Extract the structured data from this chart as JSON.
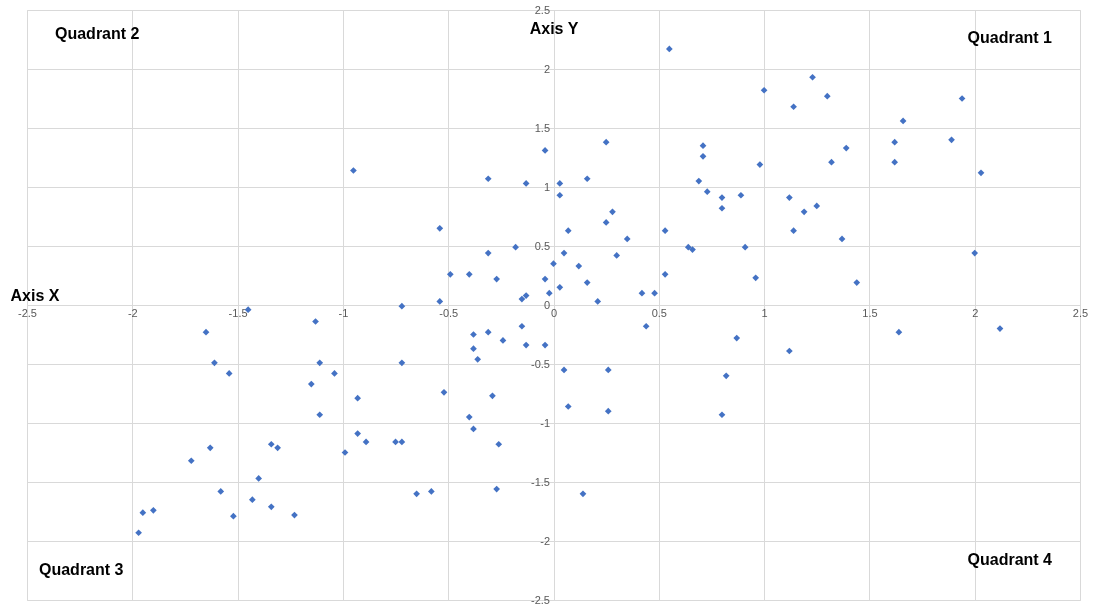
{
  "chart_data": {
    "type": "scatter",
    "xlabel": "Axis X",
    "ylabel": "Axis Y",
    "annotations": [
      "Quadrant 2",
      "Quadrant 1",
      "Quadrant 3",
      "Quadrant 4"
    ],
    "xlim": [
      -2.5,
      2.5
    ],
    "ylim": [
      -2.5,
      2.5
    ],
    "xticks": [
      -2.5,
      -2,
      -1.5,
      -1,
      -0.5,
      0,
      0.5,
      1,
      1.5,
      2,
      2.5
    ],
    "yticks": [
      -2.5,
      -2,
      -1.5,
      -1,
      -0.5,
      0,
      0.5,
      1,
      1.5,
      2,
      2.5
    ],
    "grid": true,
    "marker": "diamond",
    "series": [
      {
        "color": "#4472c4",
        "x": [
          -0.95,
          -1.45,
          0.55,
          0.25,
          -0.04,
          0.71,
          0.71,
          -0.31,
          -0.13,
          0.03,
          0.16,
          0.03,
          0.69,
          0.73,
          0.8,
          0.8,
          -0.54,
          0.28,
          0.25,
          0.07,
          0.53,
          0.35,
          -0.18,
          -0.31,
          0.05,
          0.64,
          0.66,
          0.3,
          0.0,
          0.12,
          -0.49,
          -0.4,
          0.53,
          -0.27,
          -0.04,
          0.16,
          -0.02,
          0.03,
          0.42,
          0.48,
          -0.54,
          -0.15,
          -0.13,
          0.21,
          -0.72,
          1.0,
          1.23,
          1.3,
          1.14,
          1.94,
          1.66,
          1.62,
          1.89,
          1.39,
          1.32,
          1.62,
          0.98,
          2.03,
          0.89,
          1.12,
          1.19,
          1.25,
          1.14,
          1.37,
          0.91,
          0.96,
          1.44,
          2.0,
          -1.13,
          -1.65,
          -1.61,
          -1.54,
          -1.11,
          -1.04,
          -1.15,
          -0.93,
          -1.11,
          -0.93,
          -0.89,
          -0.99,
          -1.34,
          -1.31,
          -1.63,
          -1.72,
          -1.4,
          -1.58,
          -1.43,
          -1.34,
          -1.52,
          -1.23,
          -1.95,
          -1.9,
          -1.97,
          -0.15,
          -0.38,
          -0.31,
          -0.24,
          -0.38,
          -0.13,
          -0.04,
          -0.36,
          0.44,
          -0.72,
          0.05,
          0.26,
          0.82,
          -0.52,
          -0.29,
          0.07,
          0.26,
          0.8,
          -0.4,
          -0.38,
          -0.75,
          -0.72,
          -0.26,
          -0.65,
          -0.58,
          -0.27,
          0.14,
          0.87,
          1.12,
          1.64,
          2.12
        ],
        "values": [
          1.14,
          -0.04,
          2.17,
          1.38,
          1.31,
          1.35,
          1.26,
          1.07,
          1.03,
          1.03,
          1.07,
          0.93,
          1.05,
          0.96,
          0.91,
          0.82,
          0.65,
          0.79,
          0.7,
          0.63,
          0.63,
          0.56,
          0.49,
          0.44,
          0.44,
          0.49,
          0.47,
          0.42,
          0.35,
          0.33,
          0.26,
          0.26,
          0.26,
          0.22,
          0.22,
          0.19,
          0.1,
          0.15,
          0.1,
          0.1,
          0.03,
          0.05,
          0.08,
          0.03,
          -0.01,
          1.82,
          1.93,
          1.77,
          1.68,
          1.75,
          1.56,
          1.38,
          1.4,
          1.33,
          1.21,
          1.21,
          1.19,
          1.12,
          0.93,
          0.91,
          0.79,
          0.84,
          0.63,
          0.56,
          0.49,
          0.23,
          0.19,
          0.44,
          -0.14,
          -0.23,
          -0.49,
          -0.58,
          -0.49,
          -0.58,
          -0.67,
          -0.79,
          -0.93,
          -1.09,
          -1.16,
          -1.25,
          -1.18,
          -1.21,
          -1.21,
          -1.32,
          -1.47,
          -1.58,
          -1.65,
          -1.71,
          -1.79,
          -1.78,
          -1.76,
          -1.74,
          -1.93,
          -0.18,
          -0.25,
          -0.23,
          -0.3,
          -0.37,
          -0.34,
          -0.34,
          -0.46,
          -0.18,
          -0.49,
          -0.55,
          -0.55,
          -0.6,
          -0.74,
          -0.77,
          -0.86,
          -0.9,
          -0.93,
          -0.95,
          -1.05,
          -1.16,
          -1.16,
          -1.18,
          -1.6,
          -1.58,
          -1.56,
          -1.6,
          -0.28,
          -0.39,
          -0.23,
          -0.2
        ]
      }
    ]
  }
}
